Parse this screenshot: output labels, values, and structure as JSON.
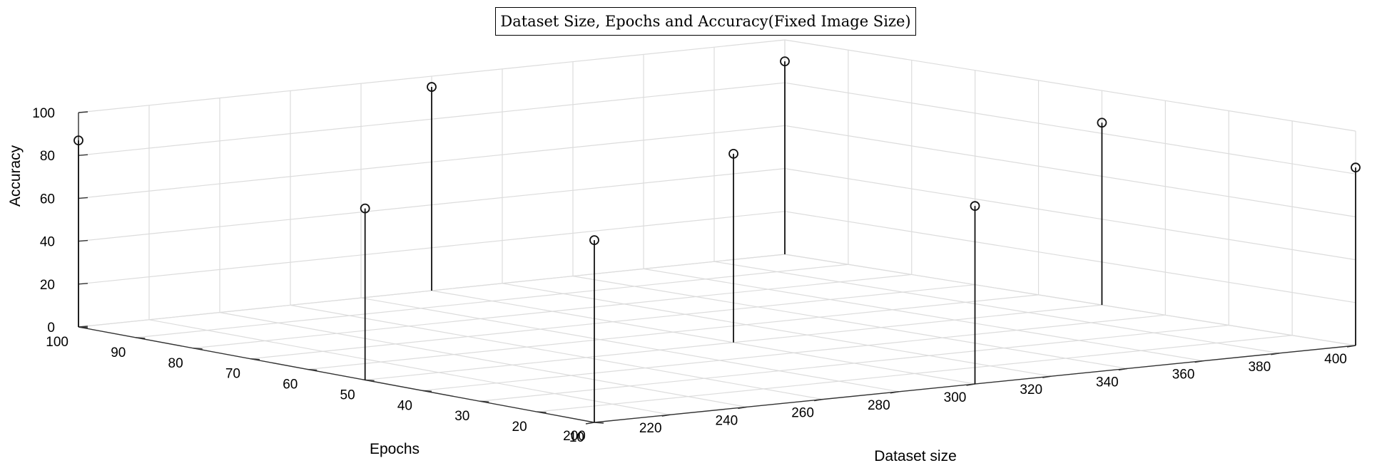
{
  "chart_data": {
    "type": "stem3",
    "title": "Dataset Size, Epochs and Accuracy(Fixed Image Size)",
    "xlabel": "Dataset size",
    "ylabel": "Epochs",
    "zlabel": "Accuracy",
    "xlim": [
      200,
      400
    ],
    "ylim": [
      10,
      100
    ],
    "zlim": [
      0,
      100
    ],
    "xticks": [
      "200",
      "220",
      "240",
      "260",
      "280",
      "300",
      "320",
      "340",
      "360",
      "380",
      "400"
    ],
    "yticks": [
      "10",
      "20",
      "30",
      "40",
      "50",
      "60",
      "70",
      "80",
      "90",
      "100"
    ],
    "zticks": [
      "0",
      "20",
      "40",
      "60",
      "80",
      "100"
    ],
    "grid": true,
    "points": [
      {
        "x": 200,
        "y": 100,
        "z": 87
      },
      {
        "x": 200,
        "y": 50,
        "z": 80
      },
      {
        "x": 200,
        "y": 10,
        "z": 85
      },
      {
        "x": 300,
        "y": 100,
        "z": 95
      },
      {
        "x": 300,
        "y": 50,
        "z": 88
      },
      {
        "x": 300,
        "y": 10,
        "z": 83
      },
      {
        "x": 400,
        "y": 100,
        "z": 90
      },
      {
        "x": 400,
        "y": 50,
        "z": 85
      },
      {
        "x": 400,
        "y": 10,
        "z": 83
      }
    ]
  }
}
